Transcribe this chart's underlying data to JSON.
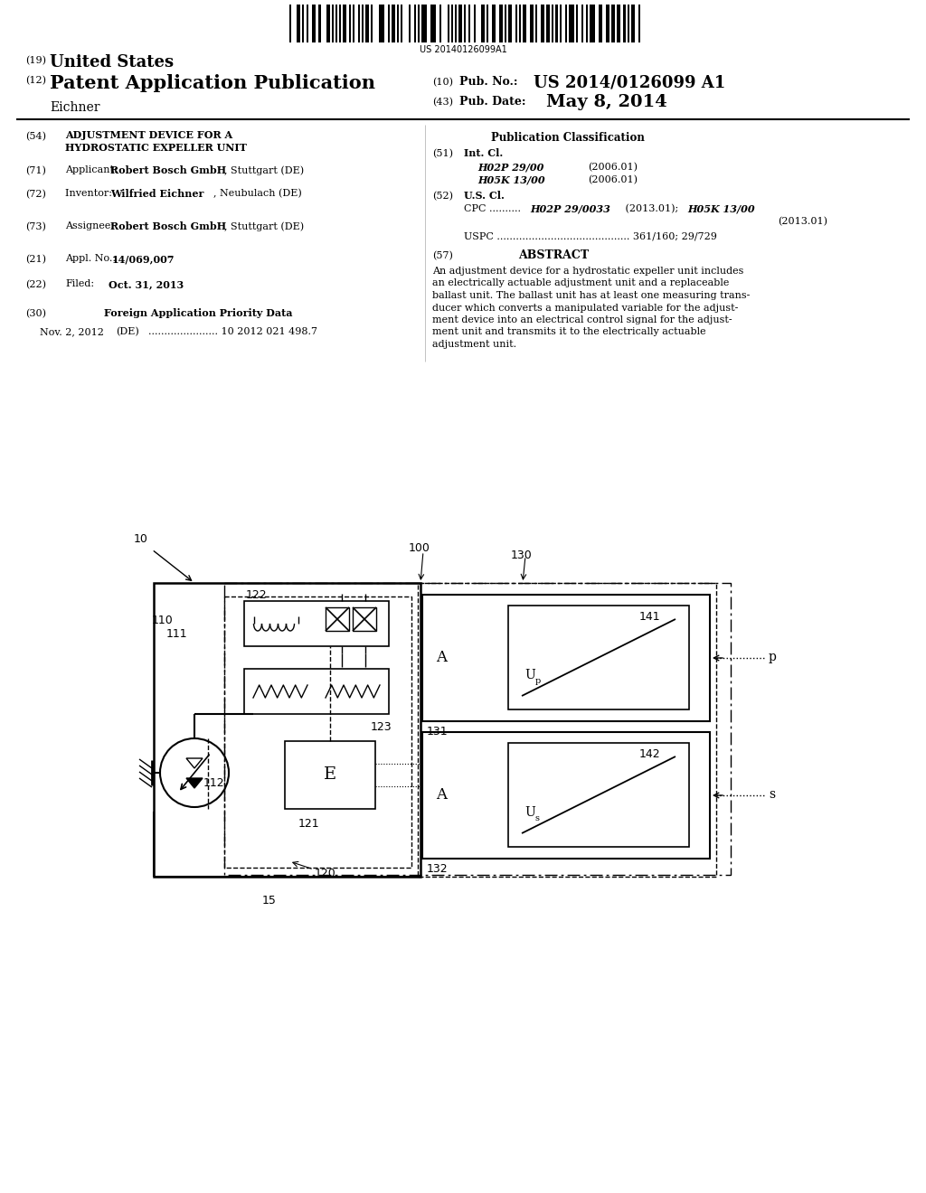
{
  "background_color": "#ffffff",
  "page_width": 10.24,
  "page_height": 13.2,
  "barcode_text": "US 20140126099A1",
  "header": {
    "line19": "United States",
    "line12": "Patent Application Publication",
    "line10_label": "(10) Pub. No.:",
    "line10_value": "US 2014/0126099 A1",
    "inventor_name": "Eichner",
    "line43_label": "(43) Pub. Date:",
    "line43_value": "May 8, 2014"
  },
  "abstract_lines": [
    "An adjustment device for a hydrostatic expeller unit includes",
    "an electrically actuable adjustment unit and a replaceable",
    "ballast unit. The ballast unit has at least one measuring trans-",
    "ducer which converts a manipulated variable for the adjust-",
    "ment device into an electrical control signal for the adjust-",
    "ment unit and transmits it to the electrically actuable",
    "adjustment unit."
  ]
}
